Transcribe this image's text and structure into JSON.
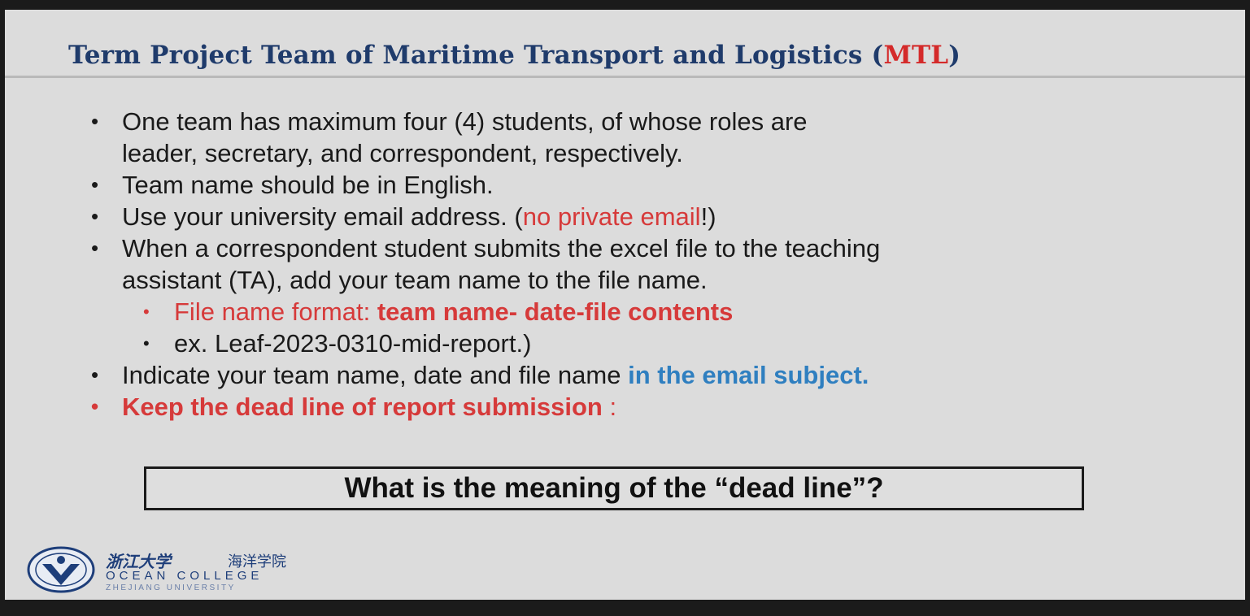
{
  "slide": {
    "title_main": "Term Project Team of Maritime Transport and Logistics (",
    "title_accent": "MTL",
    "title_end": ")",
    "bullets": [
      {
        "line1": "One team has maximum four (4) students, of whose roles are",
        "line2": "leader, secretary, and correspondent, respectively."
      },
      {
        "text": "Team name should be in English."
      },
      {
        "pre": "Use your university email address. (",
        "red": "no private email",
        "post": "!)"
      },
      {
        "line1": "When a correspondent student submits the excel file to the teaching",
        "line2": "assistant (TA), add your team name to the file name."
      },
      {
        "pre_red": "File name format: ",
        "bold_red": "team name- date-file contents"
      },
      {
        "text": "ex. Leaf-2023-0310-mid-report.)"
      },
      {
        "pre": "Indicate your team name, date and file name ",
        "blue": "in the email subject."
      },
      {
        "bold_red": "Keep the dead line of report submission",
        "post_red": " :"
      }
    ],
    "question_box": "What is the meaning of the “dead line”?",
    "logo": {
      "cn_name": "浙江大学",
      "cn_college": "海洋学院",
      "en_college": "OCEAN COLLEGE",
      "en_university": "ZHEJIANG UNIVERSITY"
    }
  },
  "colors": {
    "title_blue": "#1f3b6b",
    "accent_red": "#d63a3a",
    "link_blue": "#2f7fc0",
    "slide_bg": "#dcdcdc"
  }
}
